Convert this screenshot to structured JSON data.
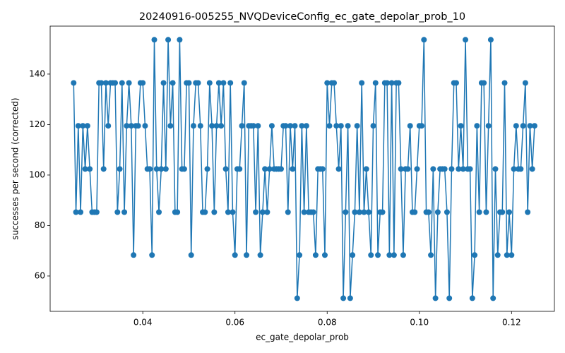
{
  "chart_data": {
    "type": "line",
    "title": "20240916-005255_NVQDeviceConfig_ec_gate_depolar_prob_10",
    "x_label": "ec_gate_depolar_prob",
    "y_label": "successes per second (corrected)",
    "x": [
      0.025,
      0.0255,
      0.026,
      0.0265,
      0.027,
      0.0275,
      0.028,
      0.0285,
      0.029,
      0.0295,
      0.03,
      0.0305,
      0.031,
      0.0315,
      0.032,
      0.0325,
      0.033,
      0.0335,
      0.034,
      0.0345,
      0.035,
      0.0355,
      0.036,
      0.0365,
      0.037,
      0.0375,
      0.038,
      0.0385,
      0.039,
      0.0395,
      0.04,
      0.0405,
      0.041,
      0.0415,
      0.042,
      0.0425,
      0.043,
      0.0435,
      0.044,
      0.0445,
      0.045,
      0.0455,
      0.046,
      0.0465,
      0.047,
      0.0475,
      0.048,
      0.0485,
      0.049,
      0.0495,
      0.05,
      0.0505,
      0.051,
      0.0515,
      0.052,
      0.0525,
      0.053,
      0.0535,
      0.054,
      0.0545,
      0.055,
      0.0555,
      0.056,
      0.0565,
      0.057,
      0.0575,
      0.058,
      0.0585,
      0.059,
      0.0595,
      0.06,
      0.0605,
      0.061,
      0.0615,
      0.062,
      0.0625,
      0.063,
      0.0635,
      0.064,
      0.0645,
      0.065,
      0.0655,
      0.066,
      0.0665,
      0.067,
      0.0675,
      0.068,
      0.0685,
      0.069,
      0.0695,
      0.07,
      0.0705,
      0.071,
      0.0715,
      0.072,
      0.0725,
      0.073,
      0.0735,
      0.074,
      0.0745,
      0.075,
      0.0755,
      0.076,
      0.0765,
      0.077,
      0.0775,
      0.078,
      0.0785,
      0.079,
      0.0795,
      0.08,
      0.0805,
      0.081,
      0.0815,
      0.082,
      0.0825,
      0.083,
      0.0835,
      0.084,
      0.0845,
      0.085,
      0.0855,
      0.086,
      0.0865,
      0.087,
      0.0875,
      0.088,
      0.0885,
      0.089,
      0.0895,
      0.09,
      0.0905,
      0.091,
      0.0915,
      0.092,
      0.0925,
      0.093,
      0.0935,
      0.094,
      0.0945,
      0.095,
      0.0955,
      0.096,
      0.0965,
      0.097,
      0.0975,
      0.098,
      0.0985,
      0.099,
      0.0995,
      0.1,
      0.1005,
      0.101,
      0.1015,
      0.102,
      0.1025,
      0.103,
      0.1035,
      0.104,
      0.1045,
      0.105,
      0.1055,
      0.106,
      0.1065,
      0.107,
      0.1075,
      0.108,
      0.1085,
      0.109,
      0.1095,
      0.11,
      0.1105,
      0.111,
      0.1115,
      0.112,
      0.1125,
      0.113,
      0.1135,
      0.114,
      0.1145,
      0.115,
      0.1155,
      0.116,
      0.1165,
      0.117,
      0.1175,
      0.118,
      0.1185,
      0.119,
      0.1195,
      0.12,
      0.1205,
      0.121,
      0.1215,
      0.122,
      0.1225,
      0.123,
      0.1235,
      0.124,
      0.1245,
      0.125
    ],
    "series": [
      {
        "color": "#1f77b4",
        "values": [
          136.5,
          85.3,
          119.5,
          85.3,
          119.5,
          102.4,
          119.5,
          102.4,
          85.3,
          85.3,
          85.3,
          136.5,
          136.5,
          102.4,
          136.5,
          119.5,
          136.5,
          136.5,
          136.5,
          85.3,
          102.4,
          136.5,
          85.3,
          119.5,
          136.5,
          119.5,
          68.3,
          119.5,
          119.5,
          136.5,
          136.5,
          119.5,
          102.4,
          102.4,
          68.3,
          153.6,
          102.4,
          85.3,
          102.4,
          136.5,
          102.4,
          153.6,
          119.5,
          136.5,
          85.3,
          85.3,
          153.6,
          102.4,
          102.4,
          136.5,
          136.5,
          68.3,
          119.5,
          136.5,
          136.5,
          119.5,
          85.3,
          85.3,
          102.4,
          136.5,
          119.5,
          85.3,
          119.5,
          136.5,
          119.5,
          136.5,
          102.4,
          85.3,
          136.5,
          85.3,
          68.3,
          102.4,
          102.4,
          119.5,
          136.5,
          68.3,
          119.5,
          119.5,
          119.5,
          85.3,
          119.5,
          68.3,
          85.3,
          102.4,
          85.3,
          102.4,
          119.5,
          102.4,
          102.4,
          102.4,
          102.4,
          119.5,
          119.5,
          85.3,
          119.5,
          102.4,
          119.5,
          51.2,
          68.3,
          119.5,
          85.3,
          119.5,
          85.3,
          85.3,
          85.3,
          68.3,
          102.4,
          102.4,
          102.4,
          68.3,
          136.5,
          119.5,
          136.5,
          136.5,
          119.5,
          102.4,
          119.5,
          51.2,
          85.3,
          119.5,
          51.2,
          68.3,
          85.3,
          119.5,
          85.3,
          136.5,
          85.3,
          102.4,
          85.3,
          68.3,
          119.5,
          136.5,
          68.3,
          85.3,
          85.3,
          136.5,
          136.5,
          68.3,
          136.5,
          68.3,
          136.5,
          136.5,
          102.4,
          68.3,
          102.4,
          102.4,
          119.5,
          85.3,
          85.3,
          102.4,
          119.5,
          119.5,
          153.6,
          85.3,
          85.3,
          68.3,
          102.4,
          51.2,
          85.3,
          102.4,
          102.4,
          102.4,
          85.3,
          51.2,
          102.4,
          136.5,
          136.5,
          102.4,
          119.5,
          102.4,
          153.6,
          102.4,
          102.4,
          51.2,
          68.3,
          119.5,
          85.3,
          136.5,
          136.5,
          85.3,
          119.5,
          153.6,
          51.2,
          102.4,
          68.3,
          85.3,
          85.3,
          136.5,
          68.3,
          85.3,
          68.3,
          102.4,
          119.5,
          102.4,
          102.4,
          119.5,
          136.5,
          85.3,
          119.5,
          102.4,
          119.5
        ]
      }
    ],
    "xlim": [
      0.0199,
      0.1293
    ],
    "ylim": [
      46.0,
      159.0
    ],
    "xticks": [
      0.04,
      0.06,
      0.08,
      {
        "value": 0.1,
        "label": "0.10"
      },
      0.12
    ],
    "yticks": [
      60,
      80,
      100,
      120,
      140
    ]
  }
}
